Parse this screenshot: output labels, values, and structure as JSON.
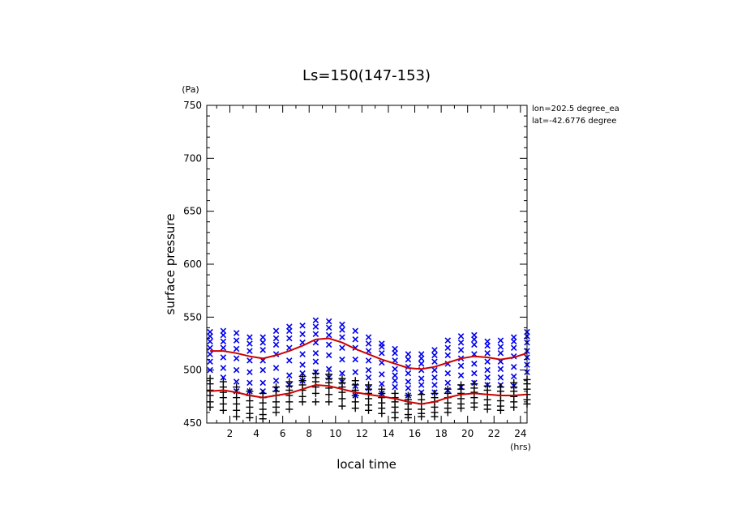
{
  "chart_data": {
    "type": "scatter",
    "title": "Ls=150(147-153)",
    "xlabel": "local time",
    "ylabel": "surface pressure",
    "x_unit": "(hrs)",
    "y_unit": "(Pa)",
    "xlim": [
      0.25,
      24.5
    ],
    "ylim": [
      450,
      750
    ],
    "x_ticks": [
      2,
      4,
      6,
      8,
      10,
      12,
      14,
      16,
      18,
      20,
      22,
      24
    ],
    "y_ticks": [
      450,
      500,
      550,
      600,
      650,
      700,
      750
    ],
    "annotations": [
      "lon=202.5 degree_ea",
      "lat=-42.6776 degree"
    ],
    "grid": false,
    "hours": [
      0.5,
      1.5,
      2.5,
      3.5,
      4.5,
      5.5,
      6.5,
      7.5,
      8.5,
      9.5,
      10.5,
      11.5,
      12.5,
      13.5,
      14.5,
      15.5,
      16.5,
      17.5,
      18.5,
      19.5,
      20.5,
      21.5,
      22.5,
      23.5,
      24.5
    ],
    "series": [
      {
        "marker": "x",
        "color": "#0000ee",
        "samples": [
          [
            536,
            532,
            527,
            521,
            515,
            508,
            500
          ],
          [
            537,
            533,
            527,
            521,
            512,
            502,
            493
          ],
          [
            535,
            528,
            520,
            511,
            500,
            489,
            480
          ],
          [
            531,
            525,
            518,
            509,
            498,
            488,
            480
          ],
          [
            531,
            526,
            519,
            509,
            500,
            488,
            480
          ],
          [
            537,
            530,
            524,
            515,
            502,
            490,
            482
          ],
          [
            541,
            537,
            530,
            521,
            509,
            495,
            486
          ],
          [
            542,
            534,
            526,
            515,
            505,
            497,
            490
          ],
          [
            547,
            541,
            534,
            526,
            516,
            508,
            498
          ],
          [
            546,
            540,
            533,
            524,
            514,
            501,
            493
          ],
          [
            543,
            538,
            531,
            521,
            510,
            497,
            489
          ],
          [
            537,
            529,
            521,
            510,
            498,
            485,
            476
          ],
          [
            531,
            525,
            518,
            509,
            500,
            493,
            483
          ],
          [
            525,
            522,
            516,
            507,
            496,
            487,
            478
          ],
          [
            520,
            516,
            509,
            501,
            495,
            490,
            484
          ],
          [
            515,
            510,
            503,
            497,
            489,
            483,
            476
          ],
          [
            515,
            511,
            506,
            500,
            492,
            486,
            479
          ],
          [
            519,
            514,
            508,
            500,
            493,
            486,
            479
          ],
          [
            528,
            521,
            514,
            506,
            497,
            488,
            481
          ],
          [
            532,
            526,
            519,
            511,
            504,
            495,
            484
          ],
          [
            533,
            529,
            524,
            515,
            506,
            497,
            488
          ],
          [
            527,
            523,
            516,
            508,
            500,
            493,
            486
          ],
          [
            528,
            522,
            516,
            508,
            501,
            493,
            486
          ],
          [
            531,
            527,
            521,
            513,
            503,
            494,
            485
          ],
          [
            536,
            532,
            526,
            518,
            512,
            505,
            498
          ]
        ],
        "mean": [
          518,
          518,
          516,
          513,
          511,
          514,
          518,
          523,
          529,
          530,
          526,
          520,
          515,
          510,
          506,
          502,
          501,
          503,
          507,
          511,
          513,
          512,
          510,
          512,
          516
        ]
      },
      {
        "marker": "+",
        "color": "#000000",
        "samples": [
          [
            492,
            487,
            481,
            476,
            470,
            465
          ],
          [
            489,
            484,
            479,
            474,
            468,
            462
          ],
          [
            484,
            479,
            474,
            468,
            462,
            456
          ],
          [
            480,
            476,
            471,
            465,
            459,
            455
          ],
          [
            478,
            474,
            469,
            463,
            458,
            454
          ],
          [
            484,
            480,
            476,
            470,
            465,
            460
          ],
          [
            489,
            485,
            481,
            476,
            470,
            463
          ],
          [
            494,
            490,
            486,
            481,
            475,
            470
          ],
          [
            497,
            493,
            489,
            484,
            478,
            470
          ],
          [
            496,
            492,
            488,
            483,
            477,
            470
          ],
          [
            492,
            488,
            484,
            479,
            473,
            466
          ],
          [
            490,
            486,
            481,
            476,
            470,
            464
          ],
          [
            486,
            482,
            478,
            473,
            467,
            462
          ],
          [
            482,
            478,
            474,
            469,
            464,
            459
          ],
          [
            478,
            474,
            470,
            465,
            460,
            455
          ],
          [
            476,
            472,
            468,
            463,
            458,
            455
          ],
          [
            477,
            472,
            468,
            463,
            459,
            456
          ],
          [
            478,
            474,
            470,
            465,
            460,
            456
          ],
          [
            482,
            478,
            474,
            469,
            464,
            460
          ],
          [
            486,
            482,
            478,
            473,
            468,
            464
          ],
          [
            487,
            483,
            479,
            474,
            469,
            465
          ],
          [
            485,
            481,
            477,
            472,
            467,
            463
          ],
          [
            484,
            480,
            476,
            471,
            466,
            462
          ],
          [
            488,
            484,
            480,
            475,
            470,
            465
          ],
          [
            491,
            487,
            482,
            477,
            472,
            468
          ]
        ],
        "mean": [
          480,
          481,
          479,
          476,
          474,
          476,
          478,
          482,
          486,
          485,
          482,
          479,
          477,
          475,
          473,
          470,
          468,
          470,
          474,
          477,
          478,
          477,
          476,
          476,
          477
        ]
      }
    ],
    "mean_line_color": "#cc0000"
  }
}
